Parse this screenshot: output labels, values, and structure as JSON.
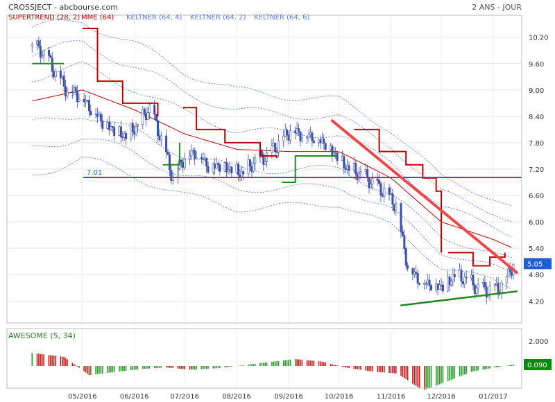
{
  "header": {
    "title": "CROSSJECT - abcbourse.com",
    "period": "2 ANS - JOUR"
  },
  "legend": [
    {
      "label": "SUPERTREND (28, 2)",
      "color": "#c00000"
    },
    {
      "label": "MME (64)",
      "color": "#c00000"
    },
    {
      "label": "KELTNER (64, 4)",
      "color": "#5b7fd6"
    },
    {
      "label": "KELTNER (64, 2)",
      "color": "#5b7fd6"
    },
    {
      "label": "KELTNER (64, 6)",
      "color": "#5b7fd6"
    }
  ],
  "colors": {
    "up": "#3b4fa8",
    "down": "#3b4fa8",
    "mme": "#c00000",
    "supertrend_down": "#c00000",
    "supertrend_up": "#1f8a1f",
    "keltner": "#3a6fe0",
    "hline": "#1f5fd6",
    "trend_down": "#f04848",
    "trend_up": "#1f8a1f",
    "ao_pos": "#2e9a2e",
    "ao_neg": "#d01818",
    "price_tag": "#1f5fd6",
    "ao_tag": "#0a8a0a"
  },
  "chart_data": [
    {
      "type": "candlestick",
      "title": "CROSSJECT - abcbourse.com",
      "ylim": [
        3.7,
        10.7
      ],
      "y_ticks": [
        "10.20",
        "9.60",
        "9.00",
        "8.40",
        "7.80",
        "7.20",
        "6.60",
        "6.00",
        "5.40",
        "4.80",
        "4.20"
      ],
      "x_ticks": [
        "05/2016",
        "06/2016",
        "07/2016",
        "08/2016",
        "09/2016",
        "10/2016",
        "11/2016",
        "12/2016",
        "01/2017"
      ],
      "last_price": "5.05",
      "horizontal_line": {
        "value": 7.01,
        "label": "7.01"
      },
      "close_path": [
        [
          "2016-04-01",
          10.0
        ],
        [
          "2016-04-08",
          9.85
        ],
        [
          "2016-04-15",
          9.4
        ],
        [
          "2016-04-22",
          9.0
        ],
        [
          "2016-04-29",
          8.9
        ],
        [
          "2016-05-06",
          8.6
        ],
        [
          "2016-05-13",
          8.3
        ],
        [
          "2016-05-20",
          8.1
        ],
        [
          "2016-05-27",
          7.95
        ],
        [
          "2016-06-03",
          8.2
        ],
        [
          "2016-06-10",
          8.6
        ],
        [
          "2016-06-17",
          7.9
        ],
        [
          "2016-06-24",
          7.0
        ],
        [
          "2016-07-01",
          7.5
        ],
        [
          "2016-07-08",
          7.6
        ],
        [
          "2016-07-15",
          7.3
        ],
        [
          "2016-07-22",
          7.3
        ],
        [
          "2016-07-29",
          7.2
        ],
        [
          "2016-08-05",
          7.1
        ],
        [
          "2016-08-12",
          7.4
        ],
        [
          "2016-08-19",
          7.5
        ],
        [
          "2016-08-26",
          7.8
        ],
        [
          "2016-09-02",
          8.1
        ],
        [
          "2016-09-09",
          8.0
        ],
        [
          "2016-09-16",
          7.95
        ],
        [
          "2016-09-23",
          7.8
        ],
        [
          "2016-09-30",
          7.5
        ],
        [
          "2016-10-07",
          7.2
        ],
        [
          "2016-10-14",
          7.1
        ],
        [
          "2016-10-21",
          6.9
        ],
        [
          "2016-10-28",
          6.7
        ],
        [
          "2016-11-04",
          6.4
        ],
        [
          "2016-11-11",
          5.0
        ],
        [
          "2016-11-18",
          4.7
        ],
        [
          "2016-11-25",
          4.6
        ],
        [
          "2016-12-02",
          4.55
        ],
        [
          "2016-12-09",
          4.8
        ],
        [
          "2016-12-16",
          4.7
        ],
        [
          "2016-12-23",
          4.5
        ],
        [
          "2016-12-30",
          4.45
        ],
        [
          "2017-01-06",
          4.55
        ],
        [
          "2017-01-13",
          5.05
        ]
      ],
      "mme64": [
        [
          "2016-04-01",
          8.75
        ],
        [
          "2016-05-01",
          9.0
        ],
        [
          "2016-06-01",
          8.55
        ],
        [
          "2016-07-01",
          8.0
        ],
        [
          "2016-08-01",
          7.65
        ],
        [
          "2016-09-01",
          7.6
        ],
        [
          "2016-10-01",
          7.6
        ],
        [
          "2016-11-01",
          7.0
        ],
        [
          "2016-12-01",
          6.0
        ],
        [
          "2017-01-01",
          5.6
        ],
        [
          "2017-01-13",
          5.4
        ]
      ],
      "keltner_offsets": [
        0.55,
        1.1,
        1.65
      ],
      "supertrend": [
        {
          "trend": "up",
          "points": [
            [
              "2016-04-01",
              9.6
            ],
            [
              "2016-04-20",
              9.6
            ]
          ]
        },
        {
          "trend": "down",
          "points": [
            [
              "2016-05-01",
              10.4
            ],
            [
              "2016-05-10",
              9.2
            ],
            [
              "2016-05-25",
              8.7
            ],
            [
              "2016-06-05",
              8.7
            ],
            [
              "2016-06-15",
              8.4
            ]
          ]
        },
        {
          "trend": "up",
          "points": [
            [
              "2016-06-18",
              7.3
            ],
            [
              "2016-06-28",
              7.8
            ]
          ]
        },
        {
          "trend": "down",
          "points": [
            [
              "2016-06-30",
              8.6
            ],
            [
              "2016-07-08",
              8.1
            ],
            [
              "2016-07-25",
              7.8
            ],
            [
              "2016-08-15",
              7.5
            ],
            [
              "2016-08-25",
              7.45
            ]
          ]
        },
        {
          "trend": "up",
          "points": [
            [
              "2016-08-28",
              6.9
            ],
            [
              "2016-09-05",
              7.5
            ],
            [
              "2016-09-30",
              7.5
            ]
          ]
        },
        {
          "trend": "down",
          "points": [
            [
              "2016-10-10",
              8.1
            ],
            [
              "2016-10-25",
              7.6
            ],
            [
              "2016-11-10",
              7.3
            ],
            [
              "2016-11-20",
              7.0
            ],
            [
              "2016-11-28",
              6.7
            ],
            [
              "2016-12-01",
              5.3
            ]
          ]
        },
        {
          "trend": "down",
          "points": [
            [
              "2016-12-05",
              5.3
            ],
            [
              "2016-12-20",
              5.0
            ],
            [
              "2016-12-30",
              5.2
            ],
            [
              "2017-01-08",
              5.3
            ]
          ]
        }
      ],
      "trendlines": [
        {
          "color": "trend_down",
          "from": [
            "2016-09-27",
            8.3
          ],
          "to": [
            "2017-01-15",
            4.85
          ]
        },
        {
          "color": "trend_up",
          "from": [
            "2016-11-07",
            4.1
          ],
          "to": [
            "2017-01-15",
            4.42
          ]
        }
      ]
    },
    {
      "type": "bar",
      "title": "AWESOME (5, 34)",
      "y_ticks": [
        "2.000"
      ],
      "last_value": "0.090",
      "values_path": [
        [
          "2016-04-01",
          0.85
        ],
        [
          "2016-04-20",
          0.6
        ],
        [
          "2016-05-05",
          -0.6
        ],
        [
          "2016-05-20",
          -0.4
        ],
        [
          "2016-06-05",
          -0.2
        ],
        [
          "2016-06-20",
          -0.1
        ],
        [
          "2016-07-05",
          -0.25
        ],
        [
          "2016-07-20",
          -0.15
        ],
        [
          "2016-08-05",
          0.05
        ],
        [
          "2016-08-20",
          0.25
        ],
        [
          "2016-09-05",
          0.45
        ],
        [
          "2016-09-20",
          0.3
        ],
        [
          "2016-10-05",
          -0.1
        ],
        [
          "2016-10-20",
          -0.35
        ],
        [
          "2016-11-05",
          -0.5
        ],
        [
          "2016-11-20",
          -1.6
        ],
        [
          "2016-12-05",
          -1.0
        ],
        [
          "2016-12-20",
          -0.35
        ],
        [
          "2017-01-05",
          -0.05
        ],
        [
          "2017-01-13",
          0.09
        ]
      ]
    }
  ]
}
